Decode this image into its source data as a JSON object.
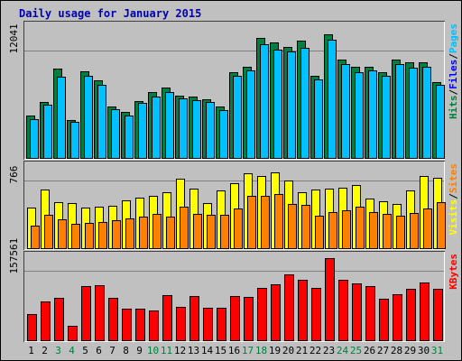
{
  "chart_data": {
    "type": "bar",
    "title": "Daily usage for January 2015",
    "colors": {
      "background": "#C0C0C0",
      "title": "#0000B0",
      "hits": "#008040",
      "files": "#00C0FF",
      "pages": "#00C0FF",
      "visits": "#FFFF00",
      "sites": "#FF8000",
      "kbytes": "#FF0000",
      "weekend_day": "#008040",
      "weekday": "#000000"
    },
    "categories": [
      "1",
      "2",
      "3",
      "4",
      "5",
      "6",
      "7",
      "8",
      "9",
      "10",
      "11",
      "12",
      "13",
      "14",
      "15",
      "16",
      "17",
      "18",
      "19",
      "20",
      "21",
      "22",
      "23",
      "24",
      "25",
      "26",
      "27",
      "28",
      "29",
      "30",
      "31"
    ],
    "weekend_days": [
      "3",
      "4",
      "10",
      "11",
      "17",
      "18",
      "24",
      "25",
      "31"
    ],
    "panels": [
      {
        "id": "hits-files-pages",
        "scale_label": "12041",
        "ylim": [
          0,
          15300
        ],
        "legend": [
          {
            "label": "Hits",
            "color": "#008040"
          },
          {
            "label": "/",
            "color": "#000000"
          },
          {
            "label": "Files",
            "color": "#0000FF"
          },
          {
            "label": "/",
            "color": "#000000"
          },
          {
            "label": "Pages",
            "color": "#00C0FF"
          }
        ],
        "series": [
          {
            "name": "Hits",
            "color": "#008040",
            "values": [
              4800,
              6300,
              10100,
              4300,
              9800,
              8800,
              5800,
              5200,
              6400,
              7400,
              8000,
              7000,
              6900,
              6600,
              5800,
              9700,
              10300,
              13500,
              13000,
              12500,
              13200,
              9300,
              13900,
              11100,
              10300,
              10300,
              9700,
              11100,
              10800,
              10800,
              8600
            ]
          },
          {
            "name": "Files",
            "color": "#00C0FF",
            "values": [
              4400,
              6000,
              9200,
              4100,
              9300,
              8300,
              5500,
              4800,
              6200,
              6900,
              7400,
              6700,
              6500,
              6300,
              5400,
              9300,
              9900,
              12800,
              12200,
              12000,
              12400,
              8900,
              13300,
              10600,
              9700,
              9900,
              9300,
              10600,
              10200,
              10300,
              8300
            ]
          }
        ]
      },
      {
        "id": "visits-sites",
        "scale_label": "766",
        "ylim": [
          0,
          975
        ],
        "legend": [
          {
            "label": "Visits",
            "color": "#FFFF00"
          },
          {
            "label": "/",
            "color": "#000000"
          },
          {
            "label": "Sites",
            "color": "#FF8000"
          }
        ],
        "series": [
          {
            "name": "Visits",
            "color": "#FFFF00",
            "values": [
              460,
              663,
              527,
              517,
              460,
              475,
              480,
              540,
              575,
              593,
              637,
              787,
              673,
              517,
              650,
              732,
              842,
              810,
              850,
              762,
              635,
              665,
              675,
              685,
              712,
              567,
              535,
              505,
              650,
              815,
              792
            ]
          },
          {
            "name": "Sites",
            "color": "#FF8000",
            "values": [
              265,
              380,
              327,
              280,
              295,
              302,
              320,
              337,
              358,
              393,
              360,
              477,
              387,
              377,
              385,
              455,
              590,
              595,
              610,
              507,
              493,
              370,
              410,
              433,
              470,
              415,
              390,
              368,
              400,
              450,
              525
            ]
          }
        ]
      },
      {
        "id": "kbytes",
        "scale_label": "157561",
        "ylim": [
          0,
          200000
        ],
        "legend": [
          {
            "label": "KBytes",
            "color": "#FF0000"
          }
        ],
        "series": [
          {
            "name": "KBytes",
            "color": "#FF0000",
            "values": [
              60000,
              88000,
              97000,
              35000,
              123000,
              125000,
              97000,
              72000,
              72000,
              68000,
              103000,
              77000,
              101000,
              75000,
              75000,
              102000,
              98000,
              120000,
              127000,
              150000,
              138000,
              120000,
              185000,
              138000,
              130000,
              123000,
              95000,
              106000,
              118000,
              131000,
              117000
            ]
          }
        ]
      }
    ]
  }
}
